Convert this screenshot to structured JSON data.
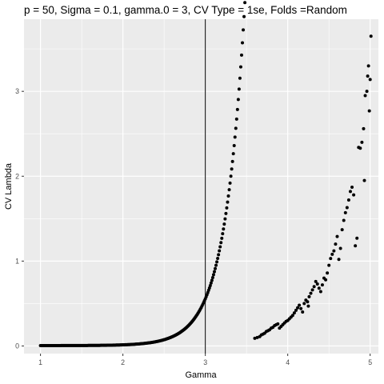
{
  "chart_data": {
    "type": "scatter",
    "title": "p = 50, Sigma = 0.1, gamma.0 = 3, CV Type = 1se, Folds =Random",
    "xlabel": "Gamma",
    "ylabel": "CV Lambda",
    "xlim": [
      0.8,
      5.1
    ],
    "ylim": [
      -0.09,
      3.85
    ],
    "x_ticks": [
      1,
      2,
      3,
      4,
      5
    ],
    "y_ticks": [
      0,
      1,
      2,
      3
    ],
    "x_minor": [
      1.5,
      2.5,
      3.5,
      4.5
    ],
    "y_minor": [
      0.5,
      1.5,
      2.5,
      3.5
    ],
    "grid": true,
    "panel_background": "#ebebeb",
    "grid_color": "#ffffff",
    "point_color": "#000000",
    "vline": {
      "x": 3,
      "color": "#000000"
    },
    "curve_model": {
      "y0": 0.0045,
      "k": 0.000137,
      "rate": 4.15,
      "x_start": 1.0,
      "x_end": 3.58,
      "step": 0.01
    },
    "points": [
      [
        3.6,
        0.09
      ],
      [
        3.63,
        0.1
      ],
      [
        3.66,
        0.11
      ],
      [
        3.68,
        0.13
      ],
      [
        3.7,
        0.14
      ],
      [
        3.72,
        0.15
      ],
      [
        3.74,
        0.17
      ],
      [
        3.76,
        0.18
      ],
      [
        3.78,
        0.19
      ],
      [
        3.8,
        0.21
      ],
      [
        3.82,
        0.22
      ],
      [
        3.84,
        0.24
      ],
      [
        3.86,
        0.25
      ],
      [
        3.88,
        0.26
      ],
      [
        3.9,
        0.21
      ],
      [
        3.92,
        0.23
      ],
      [
        3.94,
        0.25
      ],
      [
        3.96,
        0.27
      ],
      [
        3.98,
        0.29
      ],
      [
        4.0,
        0.3
      ],
      [
        4.02,
        0.32
      ],
      [
        4.04,
        0.34
      ],
      [
        4.06,
        0.36
      ],
      [
        4.08,
        0.39
      ],
      [
        4.1,
        0.42
      ],
      [
        4.12,
        0.45
      ],
      [
        4.14,
        0.48
      ],
      [
        4.16,
        0.44
      ],
      [
        4.18,
        0.4
      ],
      [
        4.2,
        0.5
      ],
      [
        4.22,
        0.54
      ],
      [
        4.24,
        0.52
      ],
      [
        4.26,
        0.58
      ],
      [
        4.28,
        0.62
      ],
      [
        4.3,
        0.66
      ],
      [
        4.32,
        0.7
      ],
      [
        4.34,
        0.76
      ],
      [
        4.36,
        0.73
      ],
      [
        4.38,
        0.68
      ],
      [
        4.4,
        0.64
      ],
      [
        4.42,
        0.72
      ],
      [
        4.44,
        0.8
      ],
      [
        4.46,
        0.78
      ],
      [
        4.48,
        0.86
      ],
      [
        4.5,
        0.95
      ],
      [
        4.52,
        1.03
      ],
      [
        4.54,
        1.08
      ],
      [
        4.56,
        1.12
      ],
      [
        4.58,
        1.2
      ],
      [
        4.6,
        1.29
      ],
      [
        4.62,
        1.02
      ],
      [
        4.64,
        1.15
      ],
      [
        4.66,
        1.37
      ],
      [
        4.68,
        1.48
      ],
      [
        4.7,
        1.57
      ],
      [
        4.72,
        1.63
      ],
      [
        4.74,
        1.72
      ],
      [
        4.76,
        1.82
      ],
      [
        4.78,
        1.87
      ],
      [
        4.8,
        1.78
      ],
      [
        4.82,
        1.18
      ],
      [
        4.84,
        1.27
      ],
      [
        4.86,
        2.34
      ],
      [
        4.88,
        2.33
      ],
      [
        4.9,
        2.4
      ],
      [
        4.92,
        2.56
      ],
      [
        4.93,
        1.95
      ],
      [
        4.94,
        2.95
      ],
      [
        4.96,
        3.0
      ],
      [
        4.97,
        3.18
      ],
      [
        4.98,
        3.3
      ],
      [
        4.99,
        2.77
      ],
      [
        5.0,
        3.14
      ],
      [
        5.01,
        3.65
      ],
      [
        4.25,
        0.47
      ]
    ]
  }
}
